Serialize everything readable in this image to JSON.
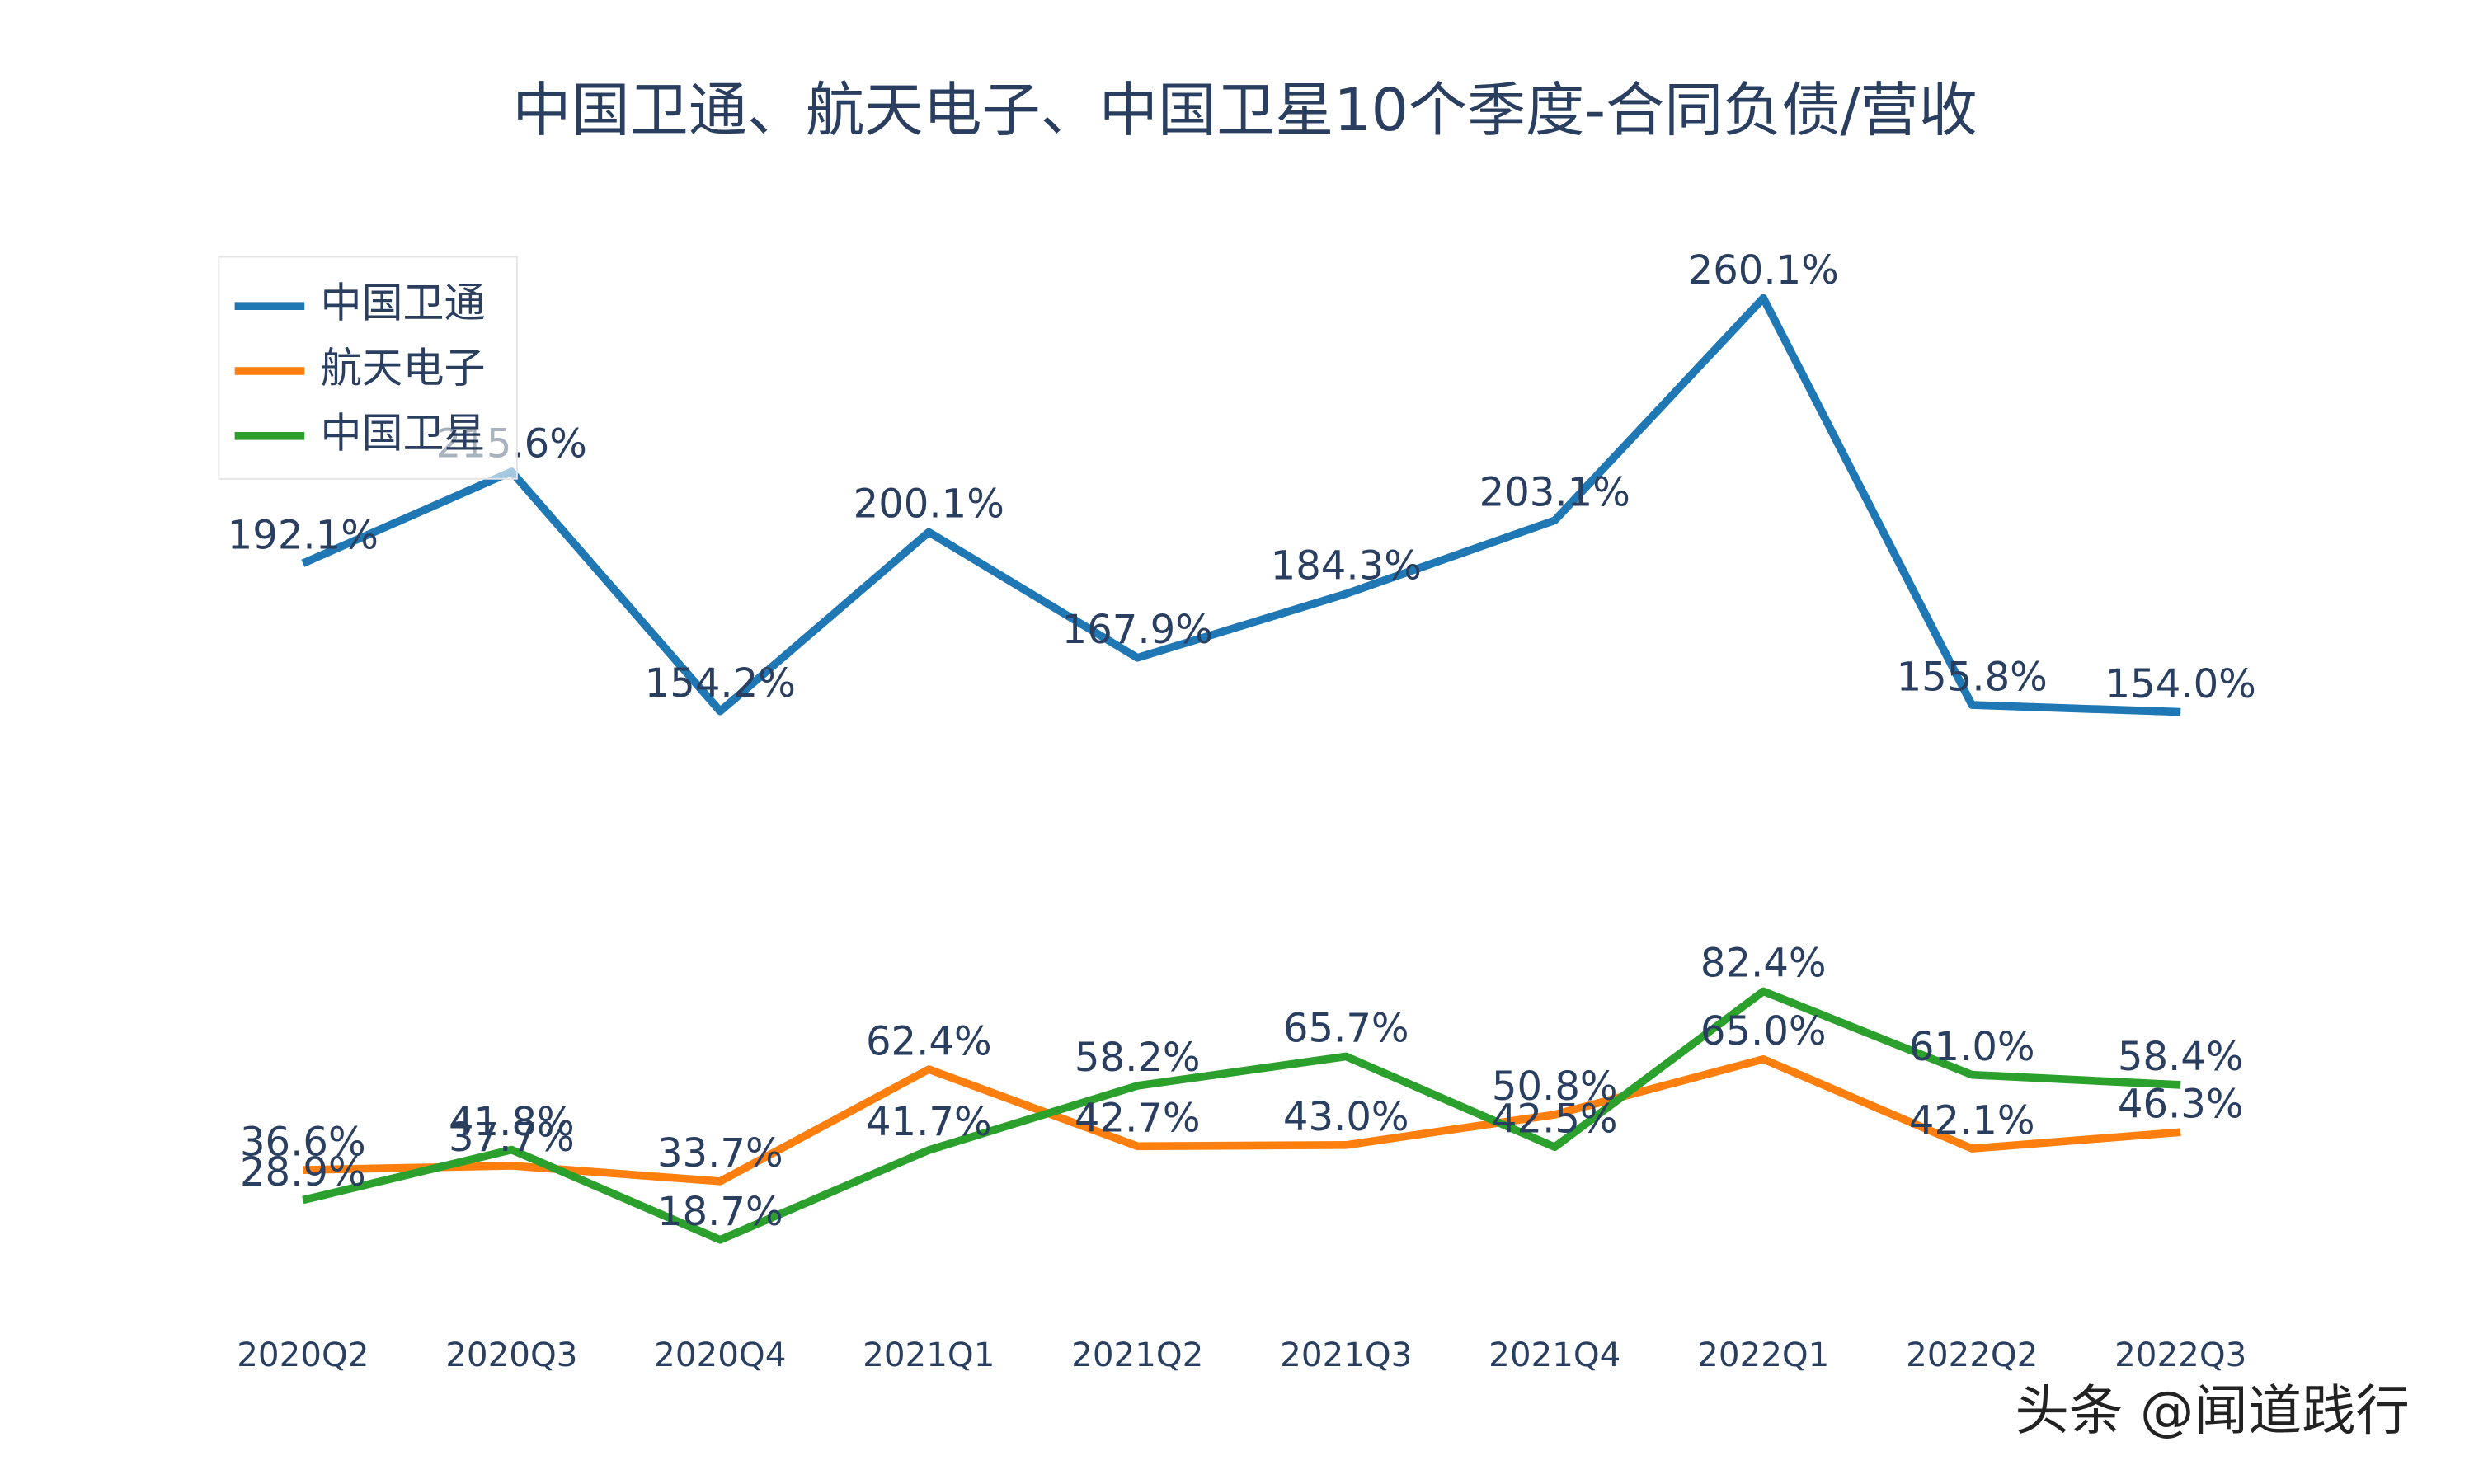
{
  "chart_data": {
    "type": "line",
    "title": "中国卫通、航天电子、中国卫星10个季度-合同负债/营收",
    "categories": [
      "2020Q2",
      "2020Q3",
      "2020Q4",
      "2021Q1",
      "2021Q2",
      "2021Q3",
      "2021Q4",
      "2022Q1",
      "2022Q2",
      "2022Q3"
    ],
    "series": [
      {
        "name": "中国卫通",
        "color": "#1f77b4",
        "values": [
          192.1,
          215.6,
          154.2,
          200.1,
          167.9,
          184.3,
          203.1,
          260.1,
          155.8,
          154.0
        ],
        "value_labels": [
          "192.1%",
          "215.6%",
          "154.2%",
          "200.1%",
          "167.9%",
          "184.3%",
          "203.1%",
          "260.1%",
          "155.8%",
          "154.0%"
        ]
      },
      {
        "name": "航天电子",
        "color": "#ff7f0e",
        "values": [
          36.6,
          37.7,
          33.7,
          62.4,
          42.7,
          43.0,
          50.8,
          65.0,
          42.1,
          46.3
        ],
        "value_labels": [
          "36.6%",
          "37.7%",
          "33.7%",
          "62.4%",
          "42.7%",
          "43.0%",
          "50.8%",
          "65.0%",
          "42.1%",
          "46.3%"
        ]
      },
      {
        "name": "中国卫星",
        "color": "#2ca02c",
        "values": [
          28.9,
          41.8,
          18.7,
          41.7,
          58.2,
          65.7,
          42.5,
          82.4,
          61.0,
          58.4
        ],
        "value_labels": [
          "28.9%",
          "41.8%",
          "18.7%",
          "41.7%",
          "58.2%",
          "65.7%",
          "42.5%",
          "82.4%",
          "61.0%",
          "58.4%"
        ]
      }
    ],
    "legend": "top-left",
    "watermark": "头条 @闻道践行"
  }
}
